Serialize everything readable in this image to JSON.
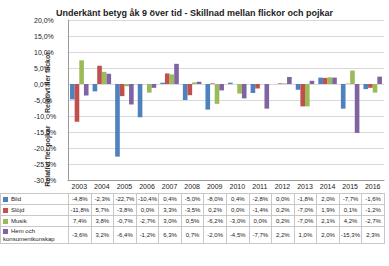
{
  "chart_data": {
    "type": "bar",
    "title": "Underkänt betyg åk 9 över tid - Skillnad mellan flickor och pojkar",
    "categories": [
      "2003",
      "2004",
      "2005",
      "2006",
      "2007",
      "2008",
      "2009",
      "2010",
      "2011",
      "2012",
      "2013",
      "2014",
      "2015",
      "2016"
    ],
    "ylim": [
      -30,
      20
    ],
    "yticks": [
      {
        "value": -30,
        "label": "-30,0%"
      },
      {
        "value": -25,
        "label": "-25,0%"
      },
      {
        "value": -20,
        "label": "-20,0%"
      },
      {
        "value": -15,
        "label": "-15,0%"
      },
      {
        "value": -10,
        "label": "-10,0%"
      },
      {
        "value": -5,
        "label": "-5,0%"
      },
      {
        "value": 0,
        "label": "0,0%"
      },
      {
        "value": 5,
        "label": "5,0%"
      },
      {
        "value": 10,
        "label": "10,0%"
      },
      {
        "value": 15,
        "label": "15,0%"
      },
      {
        "value": 20,
        "label": "20,0%"
      }
    ],
    "grid": true,
    "annotations": [
      "Relativt fler flickor",
      "Relativt fler pojkar"
    ],
    "series": [
      {
        "name": "Bild",
        "color": "#4F81BD",
        "values": [
          -4.8,
          -2.3,
          -22.7,
          -10.4,
          0.4,
          -5.0,
          -8.0,
          0.4,
          -2.8,
          0.0,
          -1.8,
          2.0,
          -7.7,
          -1.6
        ],
        "value_labels": [
          "-4,8%",
          "-2,3%",
          "-22,7%",
          "-10,4%",
          "0,4%",
          "-5,0%",
          "-8,0%",
          "0,4%",
          "-2,8%",
          "0,0%",
          "-1,8%",
          "2,0%",
          "-7,7%",
          "-1,6%"
        ]
      },
      {
        "name": "Slöjd",
        "color": "#C0504D",
        "values": [
          -11.8,
          5.7,
          -3.8,
          0.0,
          3.3,
          -3.5,
          0.2,
          0.0,
          -1.4,
          0.2,
          -7.0,
          1.9,
          0.1,
          -1.2
        ],
        "value_labels": [
          "-11,8%",
          "5,7%",
          "-3,8%",
          "0,0%",
          "3,3%",
          "-3,5%",
          "0,2%",
          "0,0%",
          "-1,4%",
          "0,2%",
          "-7,0%",
          "1,9%",
          "0,1%",
          "-1,2%"
        ]
      },
      {
        "name": "Musik",
        "color": "#9BBB59",
        "values": [
          7.4,
          3.8,
          -0.7,
          -2.7,
          3.0,
          0.5,
          -6.2,
          -3.0,
          0.0,
          0.2,
          -7.0,
          2.1,
          4.2,
          -2.7
        ],
        "value_labels": [
          "7,4%",
          "3,8%",
          "-0,7%",
          "-2,7%",
          "3,0%",
          "0,5%",
          "-6,2%",
          "-3,0%",
          "0,0%",
          "0,2%",
          "-7,0%",
          "2,1%",
          "4,2%",
          "-2,7%"
        ]
      },
      {
        "name": "Hem och konsumentkunskap",
        "color": "#8064A2",
        "values": [
          -3.6,
          3.2,
          -6.4,
          -1.2,
          6.3,
          0.7,
          -2.0,
          -4.5,
          -7.7,
          2.2,
          1.0,
          2.0,
          -15.3,
          2.3
        ],
        "value_labels": [
          "-3,6%",
          "3,2%",
          "-6,4%",
          "-1,2%",
          "6,3%",
          "0,7%",
          "-2,0%",
          "-4,5%",
          "-7,7%",
          "2,2%",
          "1,0%",
          "2,0%",
          "-15,3%",
          "2,3%"
        ]
      }
    ]
  }
}
